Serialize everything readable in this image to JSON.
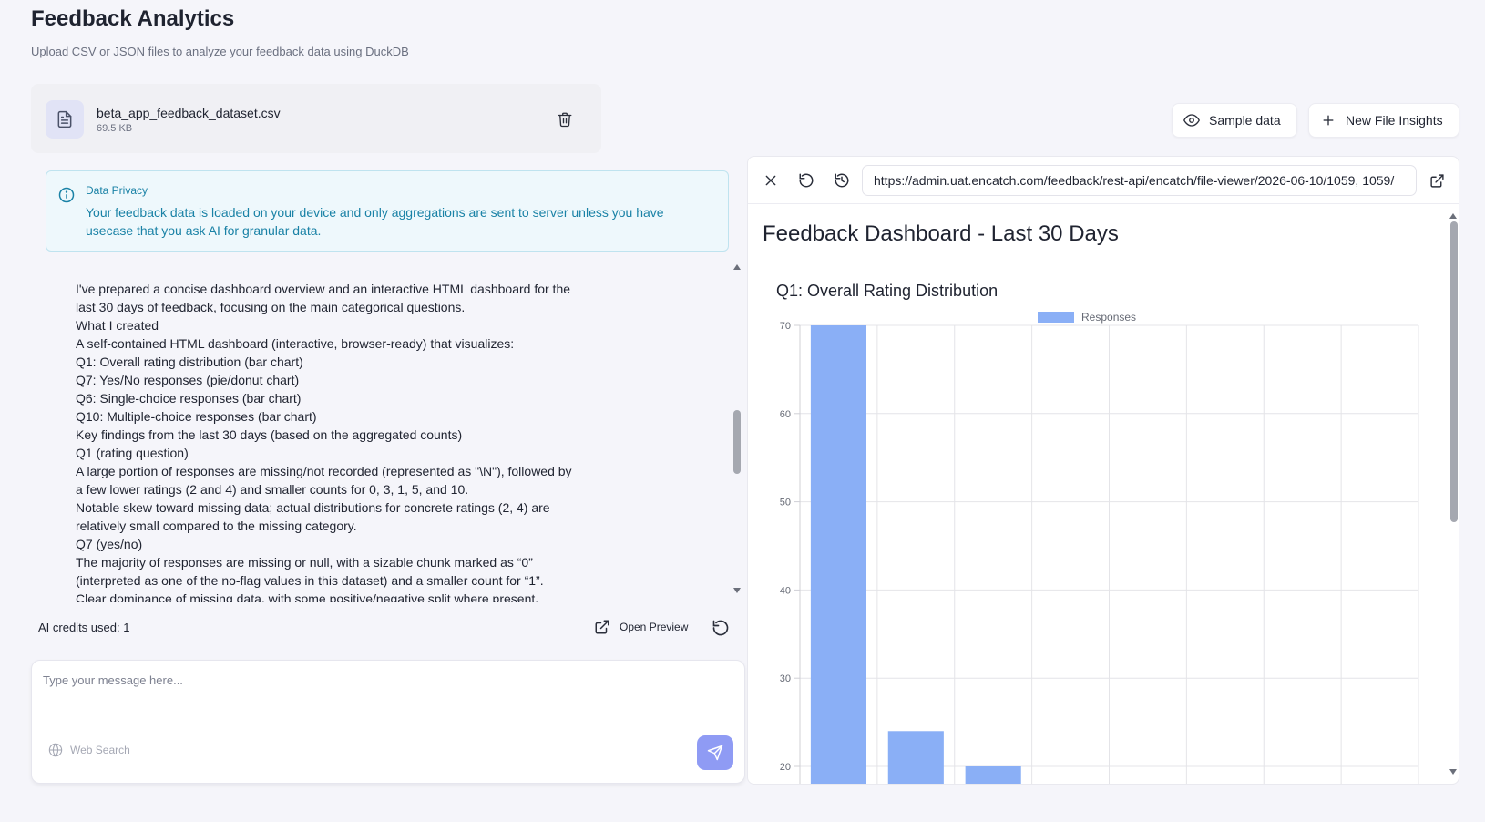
{
  "header": {
    "title": "Feedback Analytics",
    "subtitle": "Upload CSV or JSON files to analyze your feedback data using DuckDB"
  },
  "file": {
    "name": "beta_app_feedback_dataset.csv",
    "size": "69.5 KB",
    "icon": "file-text-icon"
  },
  "actions": {
    "sample_label": "Sample data",
    "new_insights_label": "New File Insights"
  },
  "privacy": {
    "title": "Data Privacy",
    "text": "Your feedback data is loaded on your device and only aggregations are sent to server unless you have usecase that you ask AI for granular data."
  },
  "chat": {
    "lines": [
      "I've prepared a concise dashboard overview and an interactive HTML dashboard for the",
      "last 30 days of feedback, focusing on the main categorical questions.",
      "What I created",
      "A self-contained HTML dashboard (interactive, browser-ready) that visualizes:",
      "Q1: Overall rating distribution (bar chart)",
      "Q7: Yes/No responses (pie/donut chart)",
      "Q6: Single-choice responses (bar chart)",
      "Q10: Multiple-choice responses (bar chart)",
      "Key findings from the last 30 days (based on the aggregated counts)",
      "Q1 (rating question)",
      "A large portion of responses are missing/not recorded (represented as \"\\N\"), followed by",
      "a few lower ratings (2 and 4) and smaller counts for 0, 3, 1, 5, and 10.",
      "Notable skew toward missing data; actual distributions for concrete ratings (2, 4) are",
      "relatively small compared to the missing category.",
      "Q7 (yes/no)",
      "The majority of responses are missing or null, with a sizable chunk marked as “0”",
      "(interpreted as one of the no-flag values in this dataset) and a smaller count for “1”.",
      "Clear dominance of missing data, with some positive/negative split where present."
    ]
  },
  "footer": {
    "credits": "AI credits used: 1",
    "open_preview": "Open Preview"
  },
  "composer": {
    "placeholder": "Type your message here...",
    "web_search": "Web Search"
  },
  "preview": {
    "url": "https://admin.uat.encatch.com/feedback/rest-api/encatch/file-viewer/2026-06-10/1059, 1059/",
    "dashboard_title": "Feedback Dashboard - Last 30 Days",
    "chart_title": "Q1: Overall Rating Distribution"
  },
  "chart_data": {
    "type": "bar",
    "title": "Q1: Overall Rating Distribution",
    "legend": "Responses",
    "legend_position": "top",
    "series": [
      {
        "name": "Responses",
        "values": [
          70,
          24,
          20
        ]
      }
    ],
    "y_ticks": [
      20,
      30,
      40,
      50,
      60,
      70
    ],
    "ylim_visible": [
      20,
      70
    ],
    "num_category_slots": 8,
    "grid": true,
    "bar_color": "#8aaff6"
  },
  "colors": {
    "accent": "#8f9bf4",
    "privacy_text": "#1a82a6",
    "bar": "#8aaff6"
  }
}
